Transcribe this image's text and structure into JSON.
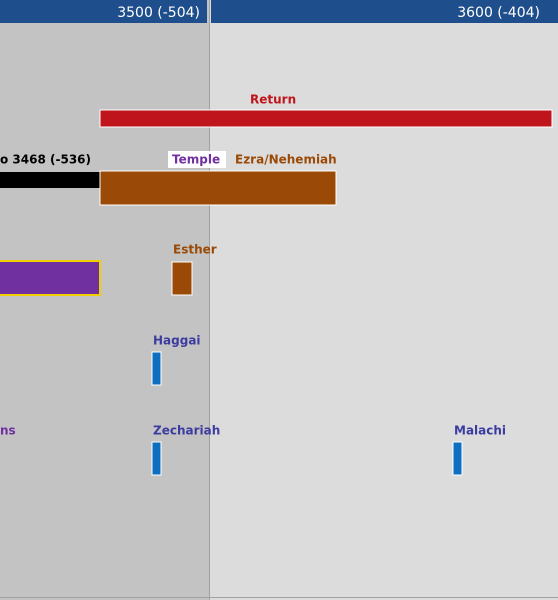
{
  "header": {
    "ticks": [
      "3500 (-504)",
      "3600 (-404)"
    ]
  },
  "events": [
    {
      "label": "Return"
    },
    {
      "label": "o 3468 (-536)"
    },
    {
      "label": "Temple"
    },
    {
      "label": "Ezra/Nehemiah"
    },
    {
      "label": "Esther"
    },
    {
      "label": "Haggai"
    },
    {
      "label": "ns"
    },
    {
      "label": "Zechariah"
    },
    {
      "label": "Malachi"
    }
  ]
}
